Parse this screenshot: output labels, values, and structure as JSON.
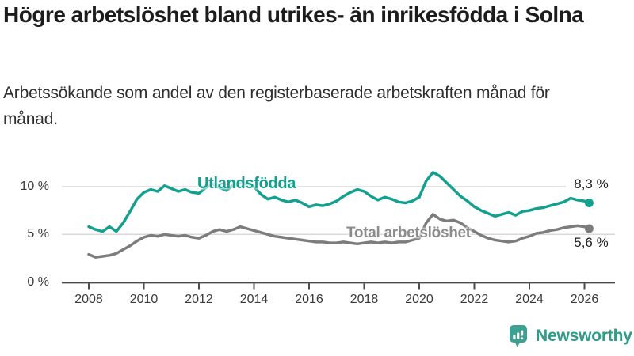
{
  "header": {
    "title": "Högre arbetslöshet bland utrikes- än inrikesfödda i Solna",
    "subtitle": "Arbetssökande som andel av den registerbaserade arbetskraften månad för månad."
  },
  "chart_data": {
    "type": "line",
    "title": "Högre arbetslöshet bland utrikes- än inrikesfödda i Solna",
    "subtitle": "Arbetssökande som andel av den registerbaserade arbetskraften månad för månad.",
    "unit": "%",
    "grid": "horizontal",
    "legend_position": "direct-labels-on-lines",
    "xlim": [
      2007,
      2027.1
    ],
    "ylim": [
      0,
      12
    ],
    "x_ticks": [
      {
        "year": 2008,
        "label": "2008"
      },
      {
        "year": 2010,
        "label": "2010"
      },
      {
        "year": 2012,
        "label": "2012"
      },
      {
        "year": 2014,
        "label": "2014"
      },
      {
        "year": 2016,
        "label": "2016"
      },
      {
        "year": 2018,
        "label": "2018"
      },
      {
        "year": 2020,
        "label": "2020"
      },
      {
        "year": 2022,
        "label": "2022"
      },
      {
        "year": 2024,
        "label": "2024"
      },
      {
        "year": 2026,
        "label": "2026"
      }
    ],
    "y_ticks": [
      {
        "value": 0,
        "label": "0 %"
      },
      {
        "value": 5,
        "label": "5 %"
      },
      {
        "value": 10,
        "label": "10 %"
      }
    ],
    "x": [
      2008,
      2008.25,
      2008.5,
      2008.75,
      2009,
      2009.25,
      2009.5,
      2009.75,
      2010,
      2010.25,
      2010.5,
      2010.75,
      2011,
      2011.25,
      2011.5,
      2011.75,
      2012,
      2012.25,
      2012.5,
      2012.75,
      2013,
      2013.25,
      2013.5,
      2013.75,
      2014,
      2014.25,
      2014.5,
      2014.75,
      2015,
      2015.25,
      2015.5,
      2015.75,
      2016,
      2016.25,
      2016.5,
      2016.75,
      2017,
      2017.25,
      2017.5,
      2017.75,
      2018,
      2018.25,
      2018.5,
      2018.75,
      2019,
      2019.25,
      2019.5,
      2019.75,
      2020,
      2020.25,
      2020.5,
      2020.75,
      2021,
      2021.25,
      2021.5,
      2021.75,
      2022,
      2022.25,
      2022.5,
      2022.75,
      2023,
      2023.25,
      2023.5,
      2023.75,
      2024,
      2024.25,
      2024.5,
      2024.75,
      2025,
      2025.25,
      2025.5,
      2025.75,
      2026,
      2026.17
    ],
    "series": [
      {
        "name": "Utlandsfödda",
        "color": "#13a08f",
        "label_color": "#13a08f",
        "end_label": "8,3 %",
        "end_value": 8.3,
        "values": [
          5.8,
          5.5,
          5.3,
          5.8,
          5.3,
          6.2,
          7.4,
          8.7,
          9.4,
          9.7,
          9.5,
          10.1,
          9.8,
          9.5,
          9.7,
          9.4,
          9.3,
          9.9,
          10.3,
          9.9,
          9.6,
          10.2,
          10.4,
          10.3,
          10.0,
          9.2,
          8.7,
          8.9,
          8.6,
          8.4,
          8.6,
          8.3,
          7.9,
          8.1,
          8.0,
          8.2,
          8.5,
          9.0,
          9.4,
          9.7,
          9.5,
          9.0,
          8.6,
          8.9,
          8.7,
          8.4,
          8.3,
          8.5,
          8.9,
          10.6,
          11.5,
          11.1,
          10.4,
          9.7,
          9.0,
          8.5,
          7.9,
          7.5,
          7.2,
          6.9,
          7.1,
          7.3,
          7.0,
          7.4,
          7.5,
          7.7,
          7.8,
          8.0,
          8.2,
          8.4,
          8.8,
          8.6,
          8.5,
          8.3
        ]
      },
      {
        "name": "Total arbetslöshet",
        "color": "#7c7c7c",
        "label_color": "#8c8c8c",
        "end_label": "5,6 %",
        "end_value": 5.6,
        "values": [
          2.9,
          2.6,
          2.7,
          2.8,
          3.0,
          3.4,
          3.8,
          4.3,
          4.7,
          4.9,
          4.8,
          5.0,
          4.9,
          4.8,
          4.9,
          4.7,
          4.6,
          4.9,
          5.3,
          5.5,
          5.3,
          5.5,
          5.8,
          5.6,
          5.4,
          5.2,
          5.0,
          4.8,
          4.7,
          4.6,
          4.5,
          4.4,
          4.3,
          4.2,
          4.2,
          4.1,
          4.1,
          4.2,
          4.1,
          4.0,
          4.1,
          4.2,
          4.1,
          4.2,
          4.1,
          4.2,
          4.2,
          4.4,
          4.6,
          6.2,
          7.1,
          6.6,
          6.4,
          6.5,
          6.2,
          5.7,
          5.3,
          4.9,
          4.6,
          4.4,
          4.3,
          4.2,
          4.3,
          4.6,
          4.8,
          5.1,
          5.2,
          5.4,
          5.5,
          5.7,
          5.8,
          5.9,
          5.8,
          5.6
        ]
      }
    ]
  },
  "colors": {
    "accent_teal": "#13a08f",
    "line_gray": "#7c7c7c",
    "gridline": "#d9d9d9",
    "axis": "#4a4a4a",
    "title_text": "#1c1c1c",
    "brand_teal": "#2f9c8a"
  },
  "footer": {
    "brand": "Newsworthy"
  }
}
